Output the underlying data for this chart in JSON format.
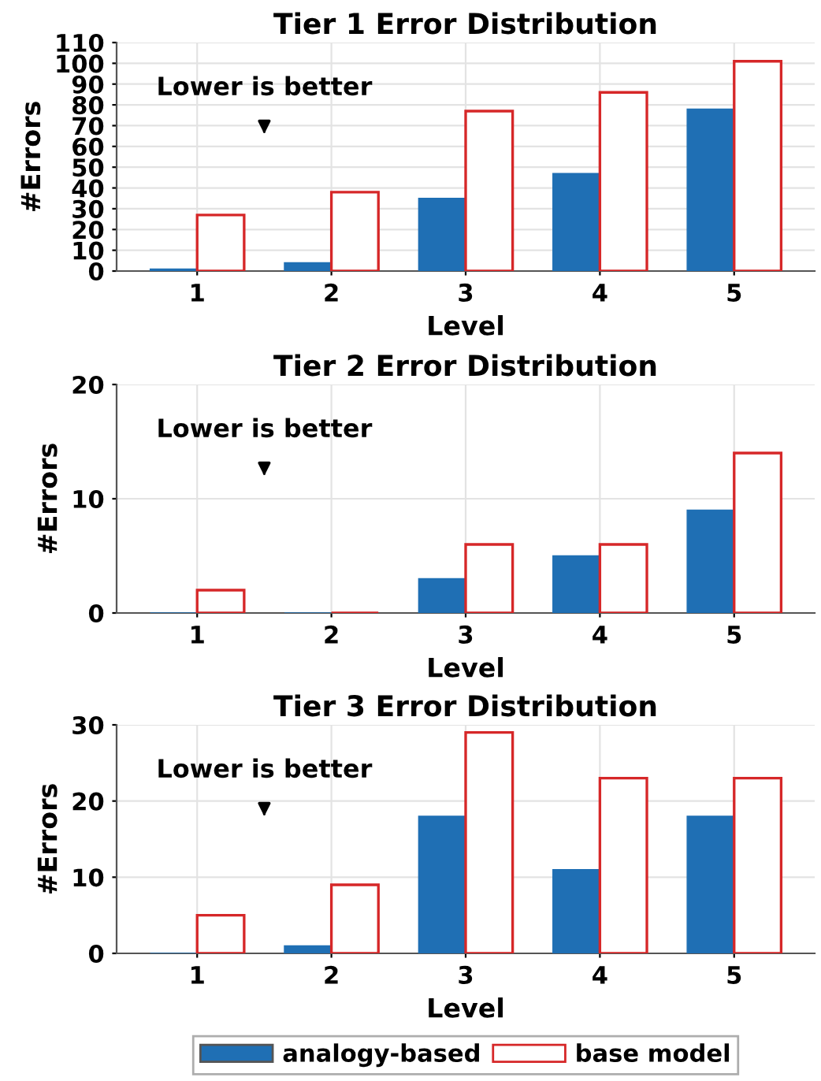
{
  "chart_data": [
    {
      "type": "bar",
      "title": "Tier 1 Error Distribution",
      "xlabel": "Level",
      "ylabel": "#Errors",
      "categories": [
        "1",
        "2",
        "3",
        "4",
        "5"
      ],
      "series": [
        {
          "color": "#1f6fb4",
          "values": [
            1,
            4,
            35,
            47,
            78
          ]
        },
        {
          "color": "#d62728",
          "values": [
            27,
            38,
            77,
            86,
            101
          ]
        }
      ],
      "ylim": [
        0,
        110
      ],
      "yticks": [
        0,
        10,
        20,
        30,
        40,
        50,
        60,
        70,
        80,
        90,
        100,
        110
      ],
      "grid": true,
      "annotations": [
        "Lower is better"
      ]
    },
    {
      "type": "bar",
      "title": "Tier 2 Error Distribution",
      "xlabel": "Level",
      "ylabel": "#Errors",
      "categories": [
        "1",
        "2",
        "3",
        "4",
        "5"
      ],
      "series": [
        {
          "color": "#1f6fb4",
          "values": [
            0,
            0,
            3,
            5,
            9
          ]
        },
        {
          "color": "#d62728",
          "values": [
            2,
            0,
            6,
            6,
            14
          ]
        }
      ],
      "ylim": [
        0,
        20
      ],
      "yticks": [
        0,
        10,
        20
      ],
      "grid": true,
      "annotations": [
        "Lower is better"
      ]
    },
    {
      "type": "bar",
      "title": "Tier 3 Error Distribution",
      "xlabel": "Level",
      "ylabel": "#Errors",
      "categories": [
        "1",
        "2",
        "3",
        "4",
        "5"
      ],
      "series": [
        {
          "name": "analogy-based",
          "color": "#1f6fb4",
          "values": [
            0,
            1,
            18,
            11,
            18
          ]
        },
        {
          "name": "base model",
          "color": "#d62728",
          "values": [
            5,
            9,
            29,
            23,
            23
          ]
        }
      ],
      "ylim": [
        0,
        30
      ],
      "yticks": [
        0,
        10,
        20,
        30
      ],
      "grid": true,
      "legend": "bottom",
      "annotations": [
        "Lower is better"
      ]
    }
  ]
}
